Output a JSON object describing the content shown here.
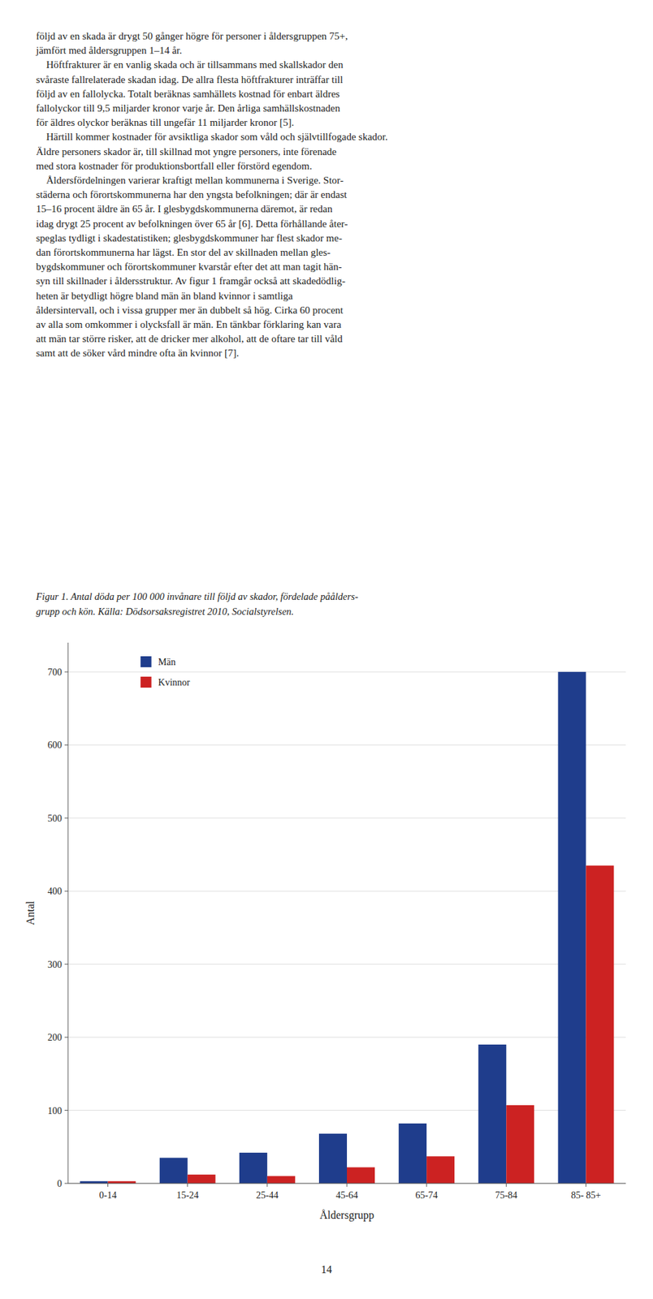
{
  "page_text": [
    "följd av en skada är drygt 50 gånger högre för personer i åldersgruppen 75+,",
    "jämfört med åldersgruppen 1–14 år.",
    " Höftfrakturer är en vanlig skada och är tillsammans med skallskador den",
    "svåraste fallrelaterade skadan idag. De allra flesta höftfrakturer inträffar till",
    "följd av en fallolycka. Totalt beräknas samhällets kostnad för enbart äldres",
    "fallolyckor till 9,5 miljarder kronor varje år. Den årliga samhällskostnaden",
    "för äldres olyckor beräknas till ungefär 11 miljarder kronor [5].",
    " Härtill kommer kostnader för avsiktliga skador som våld och självtillfogade skador.",
    "Äldre personers skador är, till skillnad mot yngre personers, inte förenade",
    "med stora kostnader för produktionsbortfall eller förstörd egendom.",
    " Åldersfördelningen varierar kraftigt mellan kommunerna i Sverige. Stor-",
    "städerna och förortskommunerna har den yngsta befolkningen; där är endast",
    "15–16 procent äldre än 65 år. I glesbygdskommunerna däremot, är redan",
    "idag drygt 25 procent av befolkningen över 65 år [6]. Detta förhållande åter-",
    "speglas tydligt i skadestatistiken; glesbygdskommuner har flest skador me-",
    "dan förortskommunerna har lägst. En stor del av skillnaden mellan gles-",
    "bygdskommuner och förortskommuner kvarstår efter det att man tagit hän-",
    "syn till skillnader i åldersstruktur. Av figur 1 framgår också att skadedödlig-",
    "heten är betydligt högre bland män än bland kvinnor i samtliga",
    "åldersintervall, och i vissa grupper mer än dubbelt så hög. Cirka 60 procent",
    "av alla som omkommer i olycksfall är män. En tänkbar förklaring kan vara",
    "att män tar större risker, att de dricker mer alkohol, att de oftare tar till våld",
    "samt att de söker vård mindre ofta än kvinnor [7]."
  ],
  "figure_caption": [
    "Figur 1. Antal döda per 100 000 invånare till följd av skador, fördelade påålders-",
    "grupp och kön. Källa: Dödsorsaksregistret 2010, Socialstyrelsen."
  ],
  "page_number": "14",
  "chart_data": {
    "type": "bar",
    "categories": [
      "0-14",
      "15-24",
      "25-44",
      "45-64",
      "65-74",
      "75-84",
      "85- 85+"
    ],
    "series": [
      {
        "name": "Män",
        "color": "#1f3d8c",
        "values": [
          3,
          35,
          42,
          68,
          82,
          190,
          700
        ]
      },
      {
        "name": "Kvinnor",
        "color": "#cc2222",
        "values": [
          3,
          12,
          10,
          22,
          37,
          107,
          435
        ]
      }
    ],
    "xlabel": "Åldersgrupp",
    "ylabel": "Antal",
    "ylim": [
      0,
      740
    ],
    "yticks": [
      0,
      100,
      200,
      300,
      400,
      500,
      600,
      700
    ],
    "grid": true,
    "legend": "upper left"
  }
}
